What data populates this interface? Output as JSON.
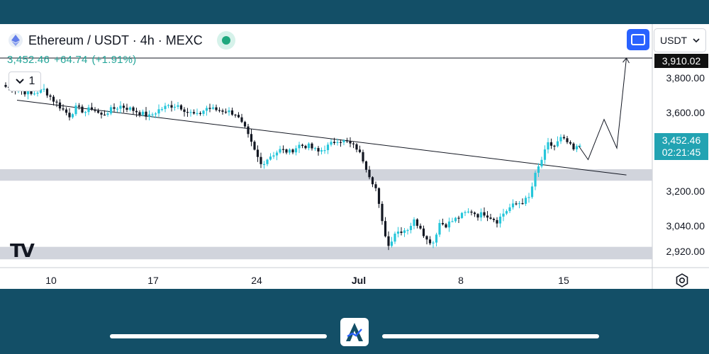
{
  "header": {
    "title": "Ethereum / USDT · 4h · MEXC",
    "price": "3,452.46",
    "change": "+64.74",
    "change_pct": "(+1.91%)",
    "collapse_count": "1",
    "currency": "USDT"
  },
  "price_axis": {
    "labels": [
      "3,800.00",
      "3,600.00",
      "3,200.00",
      "3,040.00",
      "2,920.00"
    ],
    "line_tag": "3,910.02",
    "current_price": "3,452.46",
    "countdown": "02:21:45"
  },
  "time_axis": {
    "labels": [
      "10",
      "17",
      "24",
      "Jul",
      "8",
      "15"
    ]
  },
  "colors": {
    "up": "#26c6da",
    "down": "#131722",
    "zone": "#d1d4dc",
    "accent": "#2962ff",
    "frame": "#134f67"
  },
  "chart_data": {
    "type": "candlestick",
    "symbol": "Ethereum / USDT",
    "interval": "4h",
    "exchange": "MEXC",
    "ylim": [
      2850,
      3980
    ],
    "x_ticks": [
      "10",
      "17",
      "24",
      "Jul",
      "8",
      "15"
    ],
    "y_ticks": [
      3800,
      3600,
      3200,
      3040,
      2920
    ],
    "close_path": [
      [
        0,
        3760
      ],
      [
        4,
        3745
      ],
      [
        8,
        3720
      ],
      [
        10,
        3735
      ],
      [
        12,
        3745
      ],
      [
        15,
        3690
      ],
      [
        18,
        3640
      ],
      [
        20,
        3610
      ],
      [
        22,
        3650
      ],
      [
        25,
        3630
      ],
      [
        27,
        3650
      ],
      [
        30,
        3610
      ],
      [
        33,
        3640
      ],
      [
        36,
        3660
      ],
      [
        39,
        3645
      ],
      [
        42,
        3625
      ],
      [
        45,
        3605
      ],
      [
        48,
        3640
      ],
      [
        51,
        3660
      ],
      [
        54,
        3665
      ],
      [
        57,
        3630
      ],
      [
        60,
        3610
      ],
      [
        63,
        3650
      ],
      [
        66,
        3640
      ],
      [
        69,
        3635
      ],
      [
        72,
        3620
      ],
      [
        75,
        3540
      ],
      [
        78,
        3425
      ],
      [
        80,
        3355
      ],
      [
        83,
        3400
      ],
      [
        86,
        3430
      ],
      [
        89,
        3420
      ],
      [
        92,
        3455
      ],
      [
        95,
        3450
      ],
      [
        98,
        3420
      ],
      [
        101,
        3450
      ],
      [
        104,
        3485
      ],
      [
        107,
        3470
      ],
      [
        110,
        3440
      ],
      [
        112,
        3380
      ],
      [
        114,
        3300
      ],
      [
        116,
        3230
      ],
      [
        118,
        3050
      ],
      [
        120,
        2930
      ],
      [
        122,
        3000
      ],
      [
        124,
        3010
      ],
      [
        126,
        3020
      ],
      [
        128,
        3060
      ],
      [
        130,
        3030
      ],
      [
        132,
        2960
      ],
      [
        134,
        2950
      ],
      [
        136,
        3050
      ],
      [
        138,
        3040
      ],
      [
        140,
        3060
      ],
      [
        142,
        3080
      ],
      [
        144,
        3100
      ],
      [
        146,
        3110
      ],
      [
        148,
        3090
      ],
      [
        150,
        3100
      ],
      [
        152,
        3080
      ],
      [
        154,
        3060
      ],
      [
        156,
        3100
      ],
      [
        158,
        3130
      ],
      [
        160,
        3150
      ],
      [
        162,
        3160
      ],
      [
        164,
        3180
      ],
      [
        166,
        3300
      ],
      [
        168,
        3380
      ],
      [
        170,
        3460
      ],
      [
        172,
        3450
      ],
      [
        174,
        3490
      ],
      [
        176,
        3470
      ],
      [
        178,
        3430
      ],
      [
        180,
        3452.46
      ]
    ],
    "projection": [
      [
        180,
        3452.46
      ],
      [
        183,
        3380
      ],
      [
        188,
        3590
      ],
      [
        192,
        3440
      ],
      [
        195,
        3910.02
      ]
    ],
    "trendline": [
      [
        4,
        3690
      ],
      [
        195,
        3300
      ]
    ],
    "support_zones": [
      [
        3270,
        3330
      ],
      [
        2860,
        2925
      ]
    ],
    "price_line": 3910.02,
    "last_price": 3452.46,
    "change": 64.74,
    "change_pct": 1.91
  }
}
